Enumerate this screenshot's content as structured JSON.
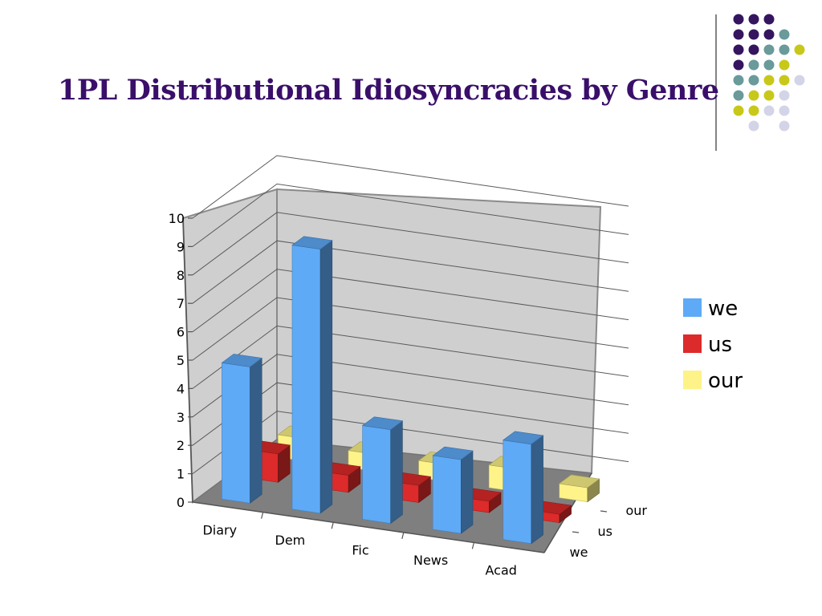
{
  "slide": {
    "title": "1PL Distributional Idiosyncracies by Genre"
  },
  "decoration": {
    "dot_colors": [
      "#35155f",
      "#6a9a9a",
      "#c8c81a",
      "#d4d4e8"
    ]
  },
  "chart_data": {
    "type": "bar",
    "subtype": "3d-column",
    "categories": [
      "Diary",
      "Dem",
      "Fic",
      "News",
      "Acad"
    ],
    "series": [
      {
        "name": "we",
        "color": "#5eaaf7",
        "values": [
          4.8,
          9.3,
          3.3,
          2.6,
          3.5
        ]
      },
      {
        "name": "us",
        "color": "#dd2a2a",
        "values": [
          1.0,
          0.6,
          0.6,
          0.4,
          0.3
        ]
      },
      {
        "name": "our",
        "color": "#fdf388",
        "values": [
          0.8,
          0.6,
          0.6,
          0.8,
          0.5
        ]
      }
    ],
    "depth_labels": [
      "we",
      "us",
      "our"
    ],
    "ylim": [
      0,
      10
    ],
    "yticks": [
      0,
      1,
      2,
      3,
      4,
      5,
      6,
      7,
      8,
      9,
      10
    ],
    "grid": true,
    "legend_position": "right",
    "title": "",
    "xlabel": "",
    "ylabel": ""
  }
}
